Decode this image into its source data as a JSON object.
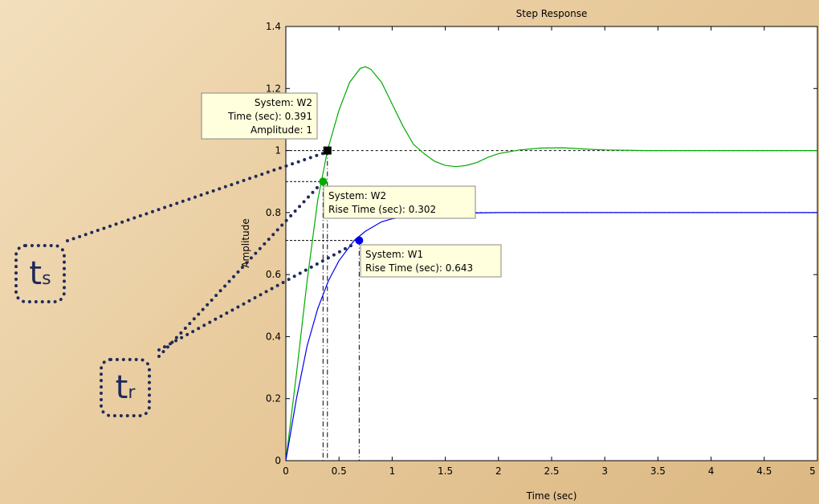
{
  "chart_data": {
    "type": "line",
    "title": "Step Response",
    "xlabel": "Time (sec)",
    "ylabel": "Amplitude",
    "xlim": [
      0,
      5
    ],
    "ylim": [
      0,
      1.4
    ],
    "x_ticks": [
      "0",
      "0.5",
      "1",
      "1.5",
      "2",
      "2.5",
      "3",
      "3.5",
      "4",
      "4.5",
      "5"
    ],
    "y_ticks": [
      "0",
      "0.2",
      "0.4",
      "0.6",
      "0.8",
      "1",
      "1.2",
      "1.4"
    ],
    "grid": false,
    "series": [
      {
        "name": "W2",
        "color": "#00aa00",
        "x": [
          0,
          0.1,
          0.2,
          0.3,
          0.391,
          0.5,
          0.6,
          0.7,
          0.75,
          0.8,
          0.9,
          1.0,
          1.1,
          1.2,
          1.3,
          1.4,
          1.5,
          1.6,
          1.7,
          1.8,
          1.9,
          2.0,
          2.2,
          2.4,
          2.6,
          2.8,
          3.0,
          3.4,
          3.9,
          5.0
        ],
        "values": [
          0,
          0.28,
          0.58,
          0.84,
          1.0,
          1.13,
          1.22,
          1.265,
          1.27,
          1.262,
          1.22,
          1.15,
          1.08,
          1.02,
          0.99,
          0.965,
          0.952,
          0.948,
          0.952,
          0.962,
          0.978,
          0.99,
          1.002,
          1.008,
          1.009,
          1.005,
          1.002,
          1.0,
          1.0,
          1.0
        ]
      },
      {
        "name": "W1",
        "color": "#0000ee",
        "x": [
          0,
          0.1,
          0.2,
          0.3,
          0.4,
          0.5,
          0.643,
          0.75,
          0.9,
          1.0,
          1.2,
          1.5,
          2.0,
          2.5,
          3.0,
          4.0,
          5.0
        ],
        "values": [
          0,
          0.2,
          0.37,
          0.49,
          0.58,
          0.645,
          0.71,
          0.74,
          0.77,
          0.78,
          0.79,
          0.797,
          0.8,
          0.8,
          0.8,
          0.8,
          0.8
        ]
      }
    ],
    "datatips": [
      {
        "system": "System: W2",
        "line2": "Time (sec): 0.391",
        "line3": "Amplitude: 1",
        "x": 0.391,
        "y": 1.0,
        "color": "#000000"
      },
      {
        "system": "System: W2",
        "line2": "Rise Time (sec): 0.302",
        "x": 0.35,
        "y": 0.9,
        "color": "#00aa00"
      },
      {
        "system": "System: W1",
        "line2": "Rise Time (sec): 0.643",
        "x": 0.69,
        "y": 0.71,
        "color": "#0000ee"
      }
    ],
    "annotations": {
      "ts": {
        "letter": "t",
        "sub": "s"
      },
      "tr": {
        "letter": "t",
        "sub": "r"
      }
    }
  }
}
